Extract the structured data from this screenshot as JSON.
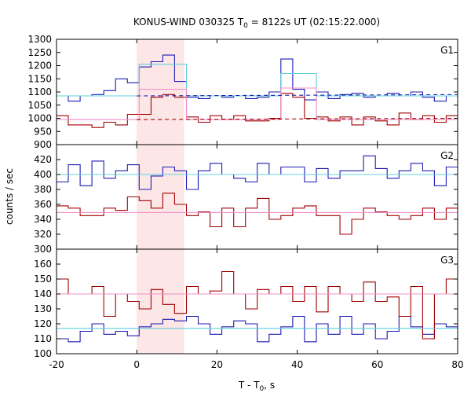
{
  "title_main": "KONUS-WIND 030325 T",
  "title_sub": "0",
  "title_tail": " = 8122s UT (02:15:22.000)",
  "ylabel": "counts / sec",
  "xlabel_main": "T - T",
  "xlabel_sub": "0",
  "xlabel_tail": ", s",
  "colors": {
    "blue": "#1c1cb4",
    "red": "#a00000",
    "cyan": "#60d0e0",
    "pink": "#f090c8",
    "shade": "#fde6e6",
    "bg_red_dash": "#a00000",
    "bg_blue_dash": "#1c1cb4"
  },
  "chart_data": {
    "type": "line",
    "x_range": [
      -20,
      80
    ],
    "x_ticks": [
      -20,
      0,
      20,
      40,
      60,
      80
    ],
    "highlight_interval": [
      0,
      11.8
    ],
    "step": 2.944,
    "step_start": -20,
    "panels": [
      {
        "name": "G1",
        "ylim": [
          900,
          1300
        ],
        "y_ticks": [
          900,
          950,
          1000,
          1050,
          1100,
          1150,
          1200,
          1250,
          1300
        ],
        "series": [
          {
            "color": "blue",
            "values": [
              1085,
              1065,
              1085,
              1090,
              1105,
              1150,
              1135,
              1195,
              1215,
              1240,
              1140,
              1080,
              1075,
              1085,
              1080,
              1085,
              1075,
              1080,
              1100,
              1225,
              1110,
              1070,
              1100,
              1075,
              1090,
              1095,
              1080,
              1085,
              1095,
              1085,
              1100,
              1080,
              1065,
              1085
            ]
          },
          {
            "color": "red",
            "values": [
              1010,
              975,
              975,
              965,
              985,
              975,
              1015,
              1015,
              1080,
              1090,
              1080,
              1005,
              985,
              1010,
              995,
              1010,
              990,
              990,
              1000,
              1095,
              1080,
              1000,
              1005,
              990,
              1005,
              975,
              1005,
              990,
              975,
              1020,
              995,
              1010,
              985,
              1010
            ]
          },
          {
            "color": "cyan",
            "values": [
              1085,
              1085,
              1085,
              1085,
              1085,
              1085,
              1085,
              1205,
              1205,
              1205,
              1205,
              1085,
              1085,
              1085,
              1085,
              1085,
              1085,
              1085,
              1085,
              1170,
              1170,
              1170,
              1085,
              1085,
              1085,
              1085,
              1085,
              1085,
              1085,
              1085,
              1085,
              1085,
              1085,
              1085
            ]
          },
          {
            "color": "pink",
            "values": [
              995,
              995,
              995,
              995,
              995,
              995,
              995,
              1110,
              1110,
              1110,
              1110,
              995,
              995,
              995,
              995,
              995,
              995,
              995,
              995,
              1115,
              1115,
              1115,
              995,
              995,
              995,
              995,
              995,
              995,
              995,
              995,
              995,
              995,
              995,
              995
            ]
          }
        ],
        "bg_dashed": [
          {
            "color": "bg_blue_dash",
            "from": 0,
            "to": 80,
            "y0": 1085,
            "y1": 1090
          },
          {
            "color": "bg_red_dash",
            "from": 0,
            "to": 80,
            "y0": 995,
            "y1": 1000
          }
        ]
      },
      {
        "name": "G2",
        "ylim": [
          300,
          440
        ],
        "y_ticks": [
          300,
          320,
          340,
          360,
          380,
          400,
          420
        ],
        "series": [
          {
            "color": "blue",
            "values": [
              390,
              413,
              385,
              418,
              395,
              405,
              413,
              380,
              398,
              410,
              405,
              380,
              405,
              415,
              400,
              395,
              390,
              415,
              400,
              410,
              410,
              390,
              408,
              395,
              405,
              405,
              425,
              408,
              395,
              405,
              415,
              405,
              385,
              410
            ]
          },
          {
            "color": "red",
            "values": [
              358,
              355,
              345,
              345,
              355,
              352,
              370,
              365,
              355,
              375,
              360,
              345,
              350,
              330,
              355,
              330,
              355,
              368,
              340,
              345,
              355,
              358,
              345,
              345,
              320,
              340,
              355,
              350,
              345,
              340,
              345,
              355,
              340,
              355
            ]
          },
          {
            "color": "cyan",
            "values": [
              400,
              400,
              400,
              400,
              400,
              400,
              400,
              400,
              400,
              400,
              400,
              400,
              400,
              400,
              400,
              400,
              400,
              400,
              400,
              400,
              400,
              400,
              400,
              400,
              400,
              400,
              400,
              400,
              400,
              400,
              400,
              400,
              400,
              400
            ]
          },
          {
            "color": "pink",
            "values": [
              349,
              349,
              349,
              349,
              349,
              349,
              349,
              349,
              349,
              349,
              349,
              349,
              349,
              349,
              349,
              349,
              349,
              349,
              349,
              349,
              349,
              349,
              349,
              349,
              349,
              349,
              349,
              349,
              349,
              349,
              349,
              349,
              349,
              349
            ]
          }
        ],
        "bg_dashed": []
      },
      {
        "name": "G3",
        "ylim": [
          100,
          170
        ],
        "y_ticks": [
          100,
          110,
          120,
          130,
          140,
          150,
          160
        ],
        "series": [
          {
            "color": "blue",
            "values": [
              110,
              108,
              115,
              120,
              113,
              115,
              112,
              118,
              120,
              123,
              122,
              125,
              120,
              113,
              118,
              122,
              120,
              108,
              113,
              118,
              125,
              108,
              120,
              113,
              125,
              113,
              120,
              110,
              115,
              125,
              118,
              113,
              120,
              118
            ]
          },
          {
            "color": "red",
            "values": [
              150,
              140,
              140,
              145,
              125,
              140,
              135,
              130,
              143,
              133,
              127,
              145,
              140,
              142,
              155,
              140,
              130,
              143,
              140,
              145,
              135,
              145,
              128,
              145,
              140,
              135,
              148,
              135,
              138,
              125,
              145,
              110,
              140,
              150
            ]
          },
          {
            "color": "cyan",
            "values": [
              117,
              117,
              117,
              117,
              117,
              117,
              117,
              117,
              117,
              117,
              117,
              117,
              117,
              117,
              117,
              117,
              117,
              117,
              117,
              117,
              117,
              117,
              117,
              117,
              117,
              117,
              117,
              117,
              117,
              117,
              117,
              117,
              117,
              117
            ]
          },
          {
            "color": "pink",
            "values": [
              140,
              140,
              140,
              140,
              140,
              140,
              140,
              140,
              140,
              140,
              140,
              140,
              140,
              140,
              140,
              140,
              140,
              140,
              140,
              140,
              140,
              140,
              140,
              140,
              140,
              140,
              140,
              140,
              140,
              140,
              140,
              140,
              140,
              140
            ]
          }
        ],
        "bg_dashed": []
      }
    ]
  }
}
